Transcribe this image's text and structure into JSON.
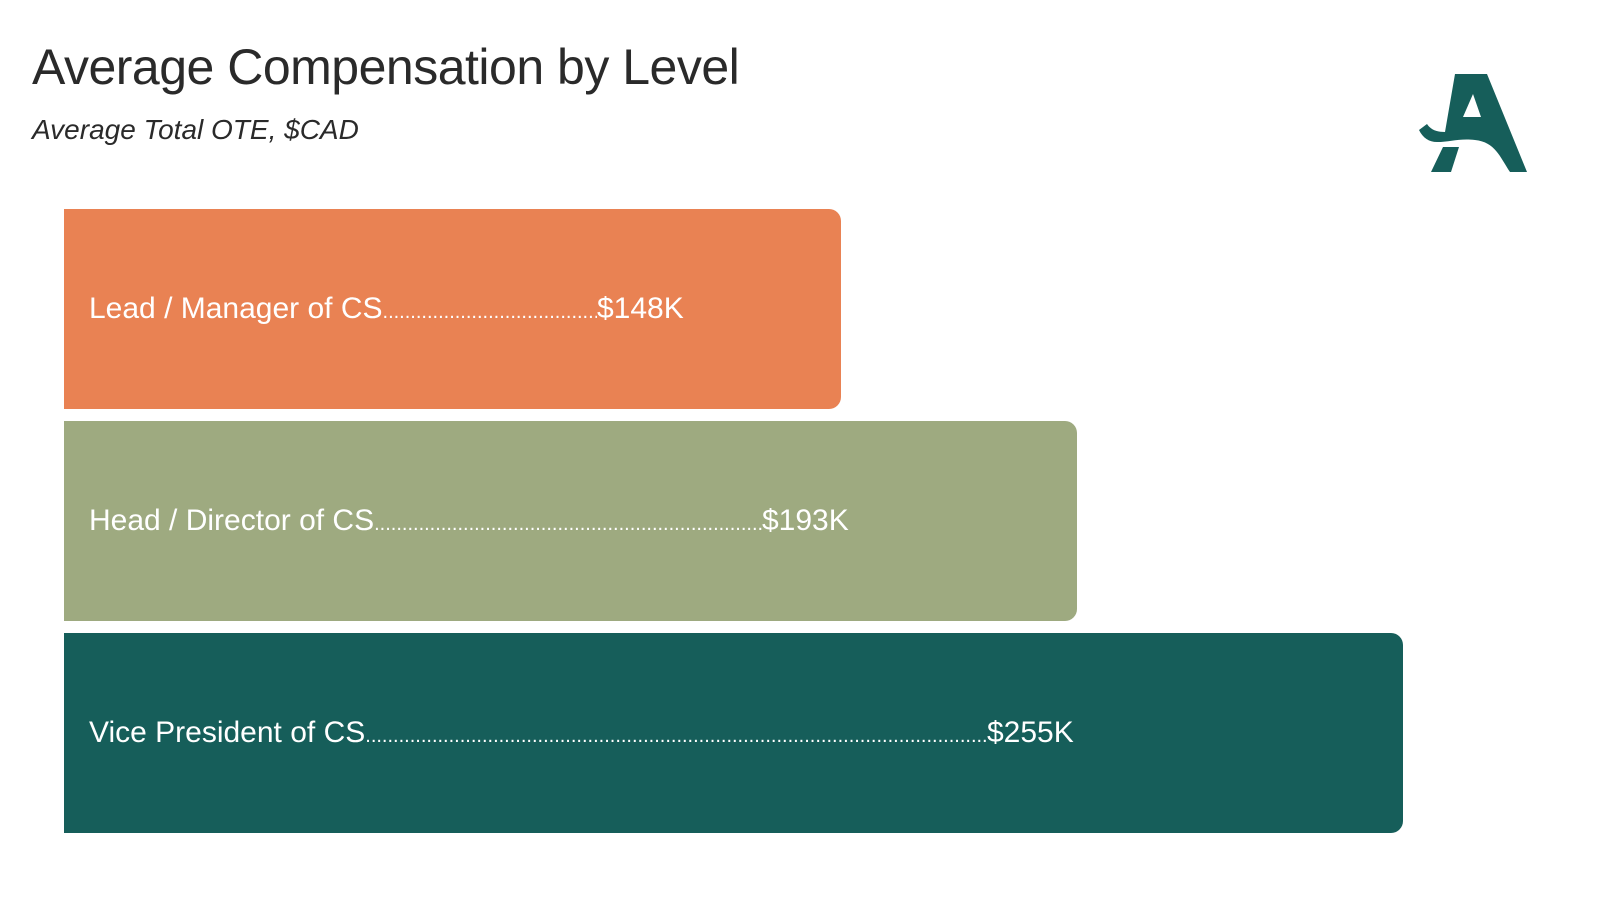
{
  "chart_data": {
    "type": "bar",
    "orientation": "horizontal",
    "title": "Average Compensation by Level",
    "subtitle": "Average Total OTE, $CAD",
    "categories": [
      "Lead / Manager of CS",
      "Head / Director of CS",
      "Vice President of CS"
    ],
    "values": [
      148,
      193,
      255
    ],
    "value_labels": [
      "$148K",
      "$193K",
      "$255K"
    ],
    "colors": [
      "#E98253",
      "#9EAA80",
      "#165E5A"
    ],
    "grid": false,
    "axes_visible": false
  },
  "logo": {
    "text": "A",
    "color": "#165E5A"
  }
}
